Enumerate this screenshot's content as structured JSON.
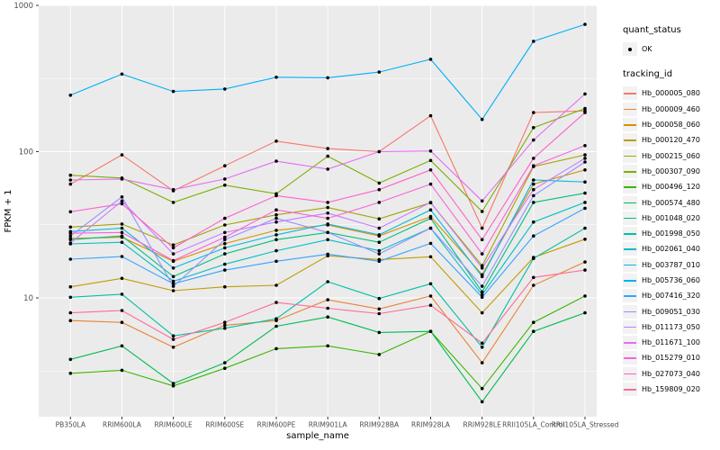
{
  "figure": {
    "panel_bg": "#EBEBEB",
    "grid_color": "#FFFFFF",
    "tick_text_color": "#4D4D4D",
    "axis_title_color": "#000000",
    "point_color": "#000000",
    "key_bg": "#F2F2F2",
    "y_tick_labels": [
      "1000",
      "100",
      "10"
    ],
    "y_tick_values": [
      1000,
      100,
      10
    ]
  },
  "legend": {
    "quant_title": "quant_status",
    "quant_items": [
      {
        "label": "OK"
      }
    ],
    "tracking_title": "tracking_id"
  },
  "chart_data": {
    "type": "line",
    "title": "",
    "xlabel": "sample_name",
    "ylabel": "FPKM + 1",
    "y_scale": "log10",
    "ylim": [
      1.5,
      1000
    ],
    "y_ticks": [
      10,
      100,
      1000
    ],
    "grid": true,
    "legend_position": "right",
    "quant_status": "OK",
    "categories": [
      "PB350LA",
      "RRIM600LA",
      "RRIM600LE",
      "RRIM600SE",
      "RRIM600PE",
      "RRIM901LA",
      "RRIM928BA",
      "RRIM928LA",
      "RRIM928LE",
      "RRII105LA_Control",
      "RRII105LA_Stressed"
    ],
    "series": [
      {
        "name": "Hb_000005_080",
        "color": "#F8766D",
        "values": [
          60,
          95,
          54,
          80,
          118,
          105,
          100,
          176,
          30,
          185,
          190
        ]
      },
      {
        "name": "Hb_000009_460",
        "color": "#EA8331",
        "values": [
          7.0,
          6.8,
          4.6,
          6.5,
          7.0,
          9.7,
          8.4,
          10.3,
          3.6,
          12.2,
          17.6
        ]
      },
      {
        "name": "Hb_000058_060",
        "color": "#D89000",
        "values": [
          25.5,
          26,
          17.8,
          23.5,
          29,
          31.5,
          26.5,
          36,
          14.4,
          60,
          75
        ]
      },
      {
        "name": "Hb_000120_470",
        "color": "#C09B00",
        "values": [
          11.9,
          13.6,
          11.2,
          11.9,
          12.2,
          19.4,
          18.3,
          19.1,
          7.9,
          18.9,
          25.2
        ]
      },
      {
        "name": "Hb_000215_060",
        "color": "#A3A500",
        "values": [
          30.5,
          32,
          23,
          31.5,
          37,
          41.5,
          34.7,
          44.7,
          16.6,
          79,
          95
        ]
      },
      {
        "name": "Hb_000307_090",
        "color": "#7CAE00",
        "values": [
          69,
          66,
          45,
          59,
          51.5,
          93,
          61,
          87,
          39,
          146,
          197
        ]
      },
      {
        "name": "Hb_000496_120",
        "color": "#39B600",
        "values": [
          3.05,
          3.2,
          2.5,
          3.3,
          4.5,
          4.7,
          4.1,
          5.9,
          2.4,
          6.8,
          10.3
        ]
      },
      {
        "name": "Hb_000574_480",
        "color": "#00BB4E",
        "values": [
          3.8,
          4.7,
          2.6,
          3.6,
          6.4,
          7.4,
          5.8,
          5.9,
          1.95,
          5.9,
          7.9
        ]
      },
      {
        "name": "Hb_001048_020",
        "color": "#00BF7D",
        "values": [
          25,
          26.5,
          14,
          20,
          25,
          28,
          24,
          35,
          11,
          45,
          52
        ]
      },
      {
        "name": "Hb_001998_050",
        "color": "#00C1A3",
        "values": [
          10.1,
          10.6,
          5.5,
          6.2,
          7.2,
          12.9,
          9.9,
          12.5,
          4.6,
          18.6,
          30
        ]
      },
      {
        "name": "Hb_002061_040",
        "color": "#00BFC4",
        "values": [
          23.4,
          24,
          13,
          17,
          21,
          25,
          21,
          30,
          10.5,
          33,
          45
        ]
      },
      {
        "name": "Hb_003787_010",
        "color": "#00BAE0",
        "values": [
          28.4,
          30,
          16,
          22,
          27,
          32,
          27,
          40,
          14,
          64,
          62
        ]
      },
      {
        "name": "Hb_005736_060",
        "color": "#00B0F6",
        "values": [
          243,
          339,
          258,
          268,
          323,
          320,
          350,
          428,
          166,
          568,
          742
        ]
      },
      {
        "name": "Hb_007416_320",
        "color": "#35A2FF",
        "values": [
          18.4,
          19.2,
          12.5,
          15.5,
          17.8,
          19.9,
          17.8,
          23.6,
          10.1,
          26.5,
          41
        ]
      },
      {
        "name": "Hb_009051_030",
        "color": "#9590FF",
        "values": [
          26.5,
          49,
          12,
          25,
          35,
          28,
          20,
          30,
          12,
          50,
          85
        ]
      },
      {
        "name": "Hb_011173_050",
        "color": "#C77CFF",
        "values": [
          23.7,
          46,
          20,
          28,
          33,
          38,
          30,
          45,
          16,
          55,
          90
        ]
      },
      {
        "name": "Hb_011671_100",
        "color": "#E76BF3",
        "values": [
          64,
          65,
          55,
          65,
          86,
          76,
          100,
          101,
          46,
          120,
          248
        ]
      },
      {
        "name": "Hb_015279_010",
        "color": "#FA62DB",
        "values": [
          27.7,
          28,
          18,
          26,
          40,
          35,
          45,
          60,
          20,
          80,
          110
        ]
      },
      {
        "name": "Hb_027073_040",
        "color": "#FF61CC",
        "values": [
          38.8,
          44,
          22,
          35,
          50,
          45,
          55,
          75,
          25,
          90,
          185
        ]
      },
      {
        "name": "Hb_159809_020",
        "color": "#FF6A98",
        "values": [
          7.9,
          8.2,
          5.2,
          6.8,
          9.3,
          8.5,
          7.8,
          8.9,
          4.9,
          13.8,
          15.5
        ]
      }
    ]
  }
}
